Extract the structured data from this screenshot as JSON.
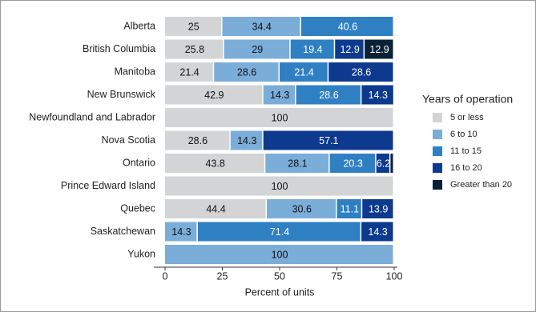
{
  "chart_data": {
    "type": "stacked-barh",
    "x_label": "Percent of units",
    "legend_title": "Years of operation",
    "legend_position": "right",
    "categories": [
      "Alberta",
      "British Columbia",
      "Manitoba",
      "New Brunswick",
      "Newfoundland and Labrador",
      "Nova Scotia",
      "Ontario",
      "Prince Edward Island",
      "Quebec",
      "Saskatchewan",
      "Yukon"
    ],
    "series": [
      {
        "name": "5 or less",
        "color": "#d2d4d5",
        "label_color": "#111111",
        "values": [
          25,
          25.8,
          21.4,
          42.9,
          100,
          28.6,
          43.8,
          100,
          44.4,
          null,
          null
        ]
      },
      {
        "name": "6 to 10",
        "color": "#7badd9",
        "label_color": "#111111",
        "values": [
          34.4,
          29,
          28.6,
          14.3,
          null,
          14.3,
          28.1,
          null,
          30.6,
          14.3,
          100
        ]
      },
      {
        "name": "11 to 15",
        "color": "#2f80c3",
        "label_color": "#ffffff",
        "values": [
          40.6,
          19.4,
          21.4,
          28.6,
          null,
          null,
          20.3,
          null,
          11.1,
          71.4,
          null
        ]
      },
      {
        "name": "16 to 20",
        "color": "#0d3a8e",
        "label_color": "#ffffff",
        "values": [
          null,
          12.9,
          28.6,
          14.3,
          null,
          57.1,
          6.2,
          null,
          13.9,
          14.3,
          null
        ]
      },
      {
        "name": "Greater than 20",
        "color": "#0a2036",
        "label_color": "#ffffff",
        "values": [
          null,
          12.9,
          null,
          null,
          null,
          null,
          1.6,
          null,
          null,
          null,
          null
        ]
      }
    ],
    "xlim": [
      0,
      100
    ],
    "xticks": [
      0,
      25,
      50,
      75,
      100
    ]
  }
}
